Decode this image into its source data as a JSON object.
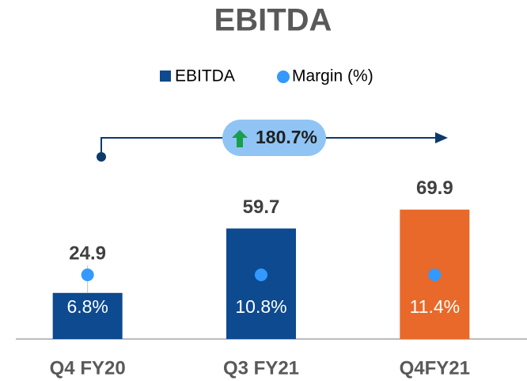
{
  "chart_data": {
    "type": "bar",
    "title": "EBITDA",
    "categories": [
      "Q4 FY20",
      "Q3 FY21",
      "Q4FY21"
    ],
    "series": [
      {
        "name": "EBITDA",
        "color": "#0d4a8f",
        "colors": [
          "#0d4a8f",
          "#0d4a8f",
          "#e8692a"
        ],
        "values": [
          24.9,
          59.7,
          69.9
        ]
      },
      {
        "name": "Margin (%)",
        "color": "#3399ff",
        "values": [
          6.8,
          10.8,
          11.4
        ],
        "value_labels": [
          "6.8%",
          "10.8%",
          "11.4%"
        ]
      }
    ],
    "annotation": "180.7%",
    "ylim": [
      0,
      80
    ]
  }
}
